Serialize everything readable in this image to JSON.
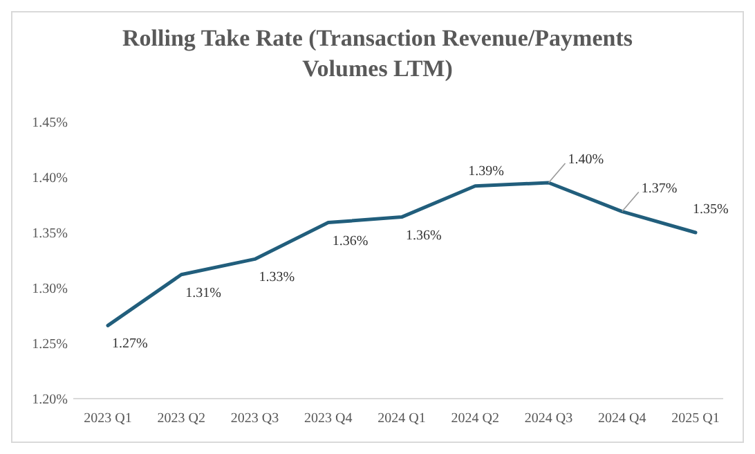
{
  "chart_data": {
    "type": "line",
    "title": "Rolling Take Rate (Transaction Revenue/Payments Volumes LTM)",
    "categories": [
      "2023 Q1",
      "2023 Q2",
      "2023 Q3",
      "2023 Q4",
      "2024 Q1",
      "2024 Q2",
      "2024 Q3",
      "2024 Q4",
      "2025 Q1"
    ],
    "series": [
      {
        "color": "#215e7c",
        "values": [
          1.266,
          1.312,
          1.326,
          1.359,
          1.364,
          1.392,
          1.395,
          1.369,
          1.35
        ],
        "value_labels": [
          "1.27%",
          "1.31%",
          "1.33%",
          "1.36%",
          "1.36%",
          "1.39%",
          "1.40%",
          "1.37%",
          "1.35%"
        ]
      }
    ],
    "ylim": [
      1.2,
      1.45
    ],
    "yticks": [
      {
        "value": 1.2,
        "label": "1.20%"
      },
      {
        "value": 1.25,
        "label": "1.25%"
      },
      {
        "value": 1.3,
        "label": "1.30%"
      },
      {
        "value": 1.35,
        "label": "1.35%"
      },
      {
        "value": 1.4,
        "label": "1.40%"
      },
      {
        "value": 1.45,
        "label": "1.45%"
      }
    ],
    "grid": false,
    "marker": "none",
    "line_style": "solid"
  }
}
